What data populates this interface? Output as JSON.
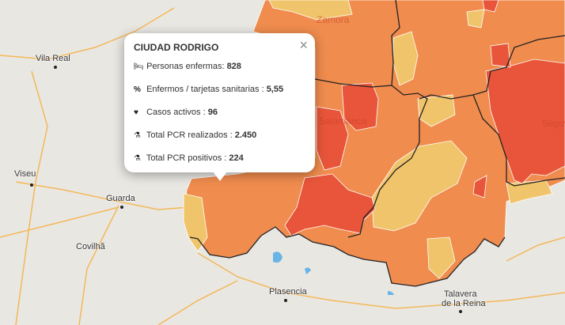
{
  "popup": {
    "title": "CIUDAD RODRIGO",
    "close_icon": "×",
    "rows": [
      {
        "icon": "bed-icon",
        "glyph": "🛏",
        "label": "Personas enfermas: ",
        "value": "828"
      },
      {
        "icon": "percent-icon",
        "glyph": "%",
        "label": "Enfermos / tarjetas sanitarias : ",
        "value": "5,55"
      },
      {
        "icon": "heartbeat-icon",
        "glyph": "♥",
        "label": "Casos activos : ",
        "value": "96"
      },
      {
        "icon": "flask-icon",
        "glyph": "⚗",
        "label": "Total PCR realizados : ",
        "value": "2.450"
      },
      {
        "icon": "flask-icon",
        "glyph": "⚗",
        "label": "Total PCR positivos : ",
        "value": "224"
      }
    ]
  },
  "places": {
    "vila_real": "Vila Real",
    "viseu": "Viseu",
    "guarda": "Guarda",
    "covilha": "Covilhã",
    "plasencia": "Plasencia",
    "talavera": "Talavera\nde la Reina",
    "talavera_1": "Talavera",
    "talavera_2": "de la Reina",
    "salamanca": "Salamanca",
    "segovia": "Segov",
    "zamora": "Zamora"
  },
  "colors": {
    "low": "#f0c46a",
    "medium": "#f08c4e",
    "high": "#e8553a",
    "base_map": "#e9e7e2",
    "road": "#f5b041",
    "water": "#6ab4e6"
  }
}
